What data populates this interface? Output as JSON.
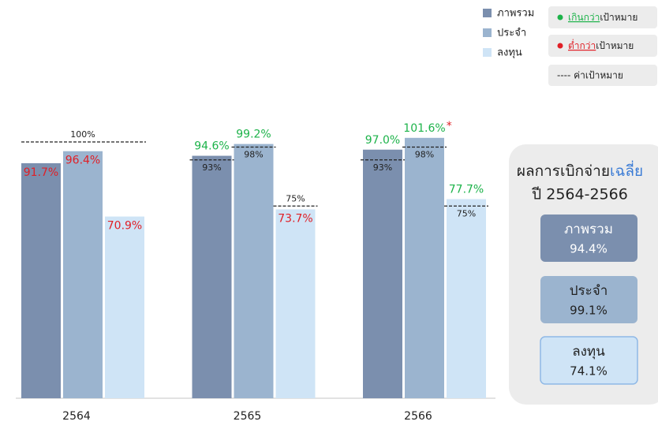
{
  "chart_data": {
    "type": "bar",
    "categories": [
      "2564",
      "2565",
      "2566"
    ],
    "series": [
      {
        "name": "ภาพรวม",
        "color": "#7b8fae",
        "values": [
          91.7,
          94.6,
          97.0
        ],
        "value_labels": [
          "91.7%",
          "94.6%",
          "97.0%"
        ]
      },
      {
        "name": "ประจำ",
        "color": "#9bb4cf",
        "values": [
          96.4,
          99.2,
          101.6
        ],
        "value_labels": [
          "96.4%",
          "99.2%",
          "101.6%"
        ]
      },
      {
        "name": "ลงทุน",
        "color": "#cfe4f6",
        "values": [
          70.9,
          73.7,
          77.7
        ],
        "value_labels": [
          "70.9%",
          "73.7%",
          "77.7%"
        ]
      }
    ],
    "targets": [
      {
        "values": [
          100
        ],
        "labels": [
          "100%"
        ]
      },
      {
        "values": [
          93,
          98,
          75
        ],
        "labels": [
          "93%",
          "98%",
          "75%"
        ]
      },
      {
        "values": [
          93,
          98,
          75
        ],
        "labels": [
          "93%",
          "98%",
          "75%"
        ]
      }
    ],
    "annotations": [
      {
        "series": 1,
        "index": 2,
        "text": "*"
      }
    ],
    "ylim": [
      0,
      110
    ],
    "status_legend": [
      {
        "status": "above",
        "color": "#1db34a",
        "prefix": "เกินกว่า",
        "suffix": "เป้าหมาย"
      },
      {
        "status": "below",
        "color": "#e01f26",
        "prefix": "ต่ำกว่า",
        "suffix": "เป้าหมาย"
      }
    ],
    "target_legend": "---- ค่าเป้าหมาย",
    "summary": {
      "title": "ผลการเบิกจ่าย",
      "title_highlight": "เฉลี่ย",
      "subtitle": "ปี 2564-2566",
      "items": [
        {
          "name": "ภาพรวม",
          "value_label": "94.4%"
        },
        {
          "name": "ประจำ",
          "value_label": "99.1%"
        },
        {
          "name": "ลงทุน",
          "value_label": "74.1%"
        }
      ]
    }
  }
}
